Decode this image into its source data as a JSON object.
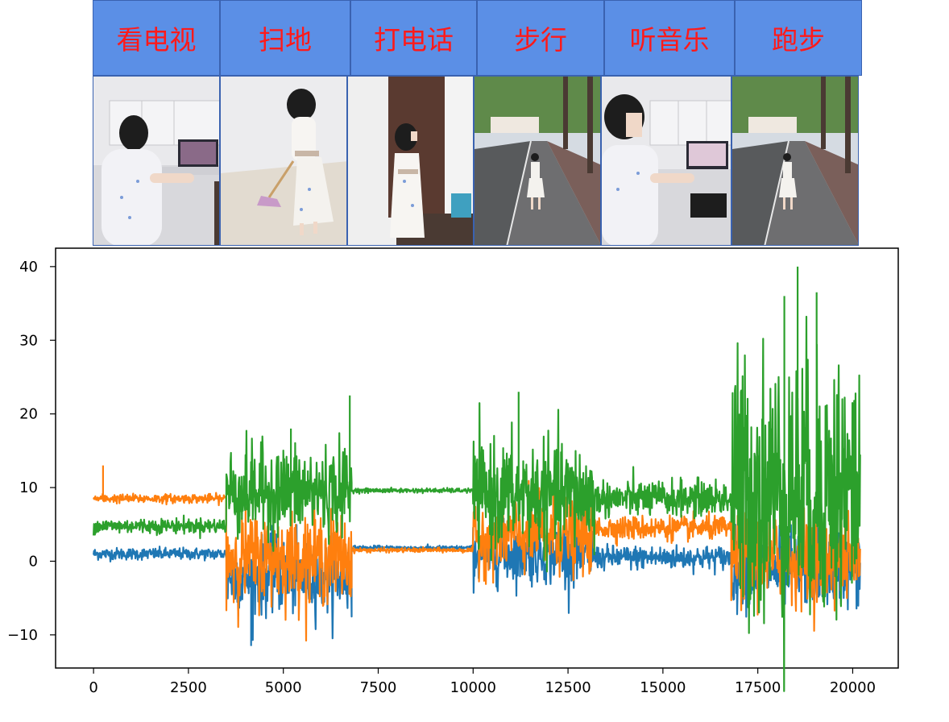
{
  "activities": [
    {
      "label": "看电视",
      "scene": "indoor-laptop"
    },
    {
      "label": "扫地",
      "scene": "indoor-sweep"
    },
    {
      "label": "打电话",
      "scene": "indoor-phone"
    },
    {
      "label": "步行",
      "scene": "outdoor-walk"
    },
    {
      "label": "听音乐",
      "scene": "indoor-laptop"
    },
    {
      "label": "跑步",
      "scene": "outdoor-walk"
    }
  ],
  "colors": {
    "header_bg": "#5b8fe6",
    "header_text": "#ff1a1a",
    "series": [
      "#1f77b4",
      "#ff7f0e",
      "#2ca02c"
    ]
  },
  "chart_data": {
    "type": "line",
    "title": "",
    "xlabel": "",
    "ylabel": "",
    "xlim": [
      -1000,
      21200
    ],
    "ylim": [
      -14.5,
      42.5
    ],
    "xticks": [
      0,
      2500,
      5000,
      7500,
      10000,
      12500,
      15000,
      17500,
      20000
    ],
    "xtick_labels": [
      "0",
      "2500",
      "5000",
      "7500",
      "10000",
      "12500",
      "15000",
      "17500",
      "20000"
    ],
    "yticks": [
      -10,
      0,
      10,
      20,
      30,
      40
    ],
    "ytick_labels": [
      "−10",
      "0",
      "10",
      "20",
      "30",
      "40"
    ],
    "grid": false,
    "legend": "none",
    "segments": [
      {
        "activity": "看电视",
        "x": [
          0,
          3500
        ],
        "means": [
          1.0,
          8.5,
          4.8
        ],
        "noise": [
          0.4,
          0.3,
          0.5
        ]
      },
      {
        "activity": "扫地",
        "x": [
          3500,
          6800
        ],
        "means": [
          -2.0,
          0.5,
          9.5
        ],
        "noise": [
          2.5,
          3.0,
          3.0
        ]
      },
      {
        "activity": "打电话",
        "x": [
          6800,
          10000
        ],
        "means": [
          1.8,
          1.5,
          9.6
        ],
        "noise": [
          0.15,
          0.15,
          0.15
        ]
      },
      {
        "activity": "步行",
        "x": [
          10000,
          13200
        ],
        "means": [
          1.0,
          3.5,
          9.0
        ],
        "noise": [
          2.0,
          2.5,
          3.5
        ]
      },
      {
        "activity": "听音乐",
        "x": [
          13200,
          16800
        ],
        "means": [
          0.5,
          4.5,
          8.5
        ],
        "noise": [
          0.8,
          0.8,
          1.2
        ]
      },
      {
        "activity": "跑步",
        "x": [
          16800,
          20200
        ],
        "means": [
          -1.0,
          0.5,
          10.0
        ],
        "noise": [
          2.5,
          3.0,
          9.0
        ]
      }
    ],
    "series": [
      {
        "values_summary": "blue",
        "color": "#1f77b4"
      },
      {
        "values_summary": "orange",
        "color": "#ff7f0e"
      },
      {
        "values_summary": "green",
        "color": "#2ca02c"
      }
    ],
    "peaks": [
      {
        "series": 2,
        "x": 18550,
        "y": 40
      },
      {
        "series": 2,
        "x": 18200,
        "y": 36
      },
      {
        "series": 2,
        "x": 19050,
        "y": 36.5
      },
      {
        "series": 2,
        "x": 11200,
        "y": 23
      },
      {
        "series": 2,
        "x": 6750,
        "y": 22.5
      },
      {
        "series": 2,
        "x": 5200,
        "y": 18
      },
      {
        "series": 1,
        "x": 250,
        "y": 13
      },
      {
        "series": 0,
        "x": 4150,
        "y": -11.5
      }
    ]
  }
}
